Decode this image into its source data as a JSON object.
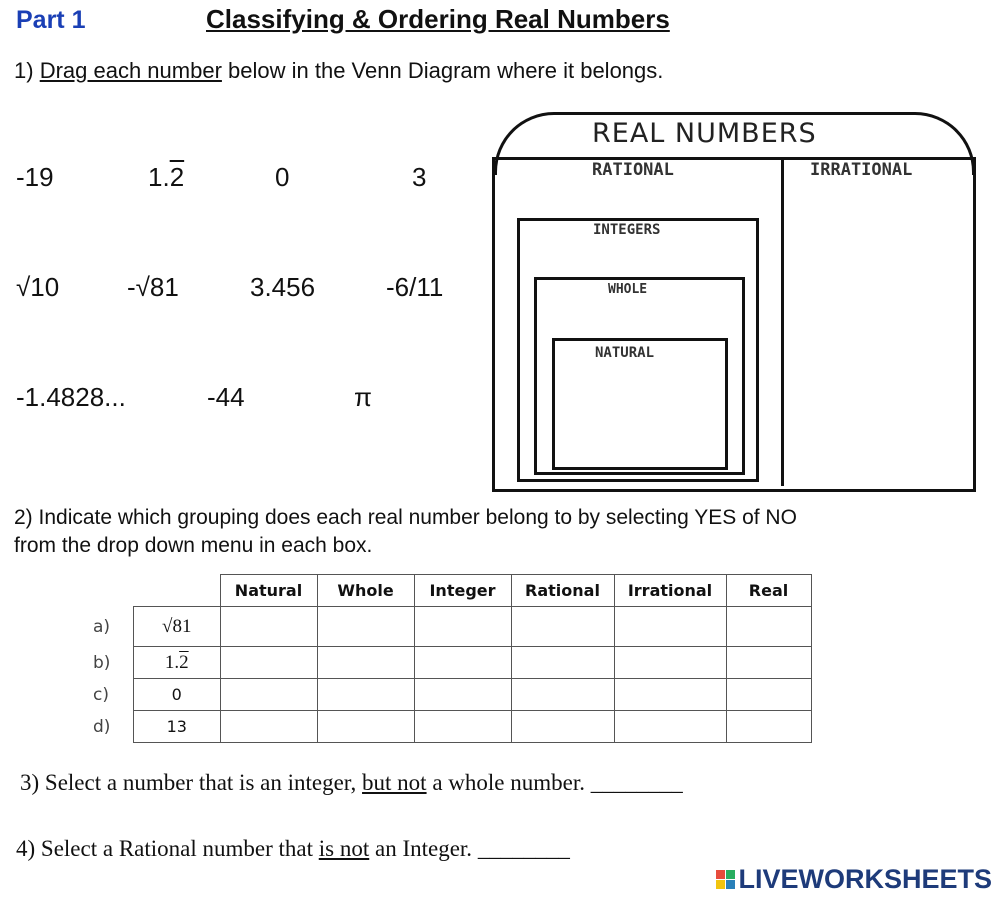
{
  "header": {
    "part": "Part 1",
    "title": "Classifying & Ordering Real Numbers"
  },
  "q1": {
    "number": "1)",
    "link": "Drag each number",
    "rest": " below in the Venn Diagram where it belongs."
  },
  "numbers": [
    {
      "main": "-19"
    },
    {
      "main": "1.",
      "bar": "2"
    },
    {
      "main": "0"
    },
    {
      "main": "3"
    },
    {
      "main": "√10"
    },
    {
      "main": "-√81"
    },
    {
      "main": "3.456"
    },
    {
      "main": "-6/11"
    },
    {
      "main": "-1.4828..."
    },
    {
      "main": "-44"
    },
    {
      "main": "π"
    }
  ],
  "venn": {
    "title": "REAL NUMBERS",
    "rational": "RATIONAL",
    "irrational": "IRRATIONAL",
    "integers": "INTEGERS",
    "whole": "WHOLE",
    "natural": "NATURAL"
  },
  "q2": {
    "line1": "2) Indicate which grouping does each real number belong to by selecting YES of NO",
    "line2": "from the drop down menu in each box."
  },
  "table": {
    "columns": [
      "Natural",
      "Whole",
      "Integer",
      "Rational",
      "Irrational",
      "Real"
    ],
    "rows": [
      {
        "label": "a)",
        "value": "√81"
      },
      {
        "label": "b)",
        "value": "1.",
        "bar": "2"
      },
      {
        "label": "c)",
        "value": "0"
      },
      {
        "label": "d)",
        "value": "13"
      }
    ]
  },
  "q3": {
    "pre": "3) Select a number that is an integer, ",
    "u": "but not",
    "post": " a whole number.",
    "blank": "________"
  },
  "q4": {
    "pre": "4) Select a Rational number that ",
    "u": "is not",
    "post": " an Integer.",
    "blank": "________"
  },
  "brand": {
    "name": "LIVEWORKSHEETS",
    "colors": [
      "#e74c3c",
      "#27ae60",
      "#f1c40f",
      "#2980b9"
    ]
  }
}
